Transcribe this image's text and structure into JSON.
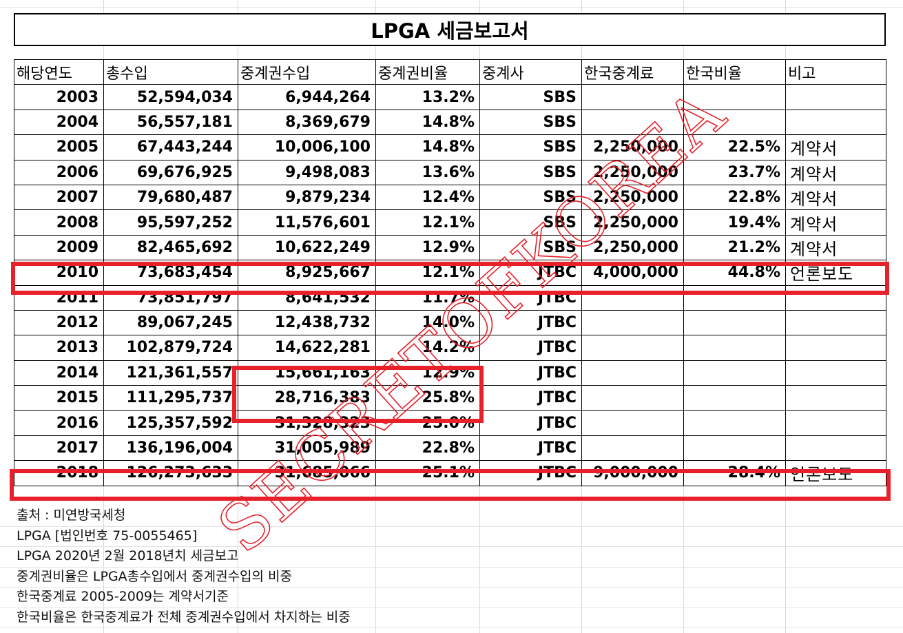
{
  "title": "LPGA 세금보고서",
  "columns": [
    "해당연도",
    "총수입",
    "중계권수입",
    "중계권비율",
    "중계사",
    "한국중계료",
    "한국비율",
    "비고"
  ],
  "rows": [
    {
      "year": "2003",
      "total": "52,594,034",
      "rights": "6,944,264",
      "ratio": "13.2%",
      "broadcaster": "SBS",
      "korea_fee": "",
      "korea_ratio": "",
      "note": ""
    },
    {
      "year": "2004",
      "total": "56,557,181",
      "rights": "8,369,679",
      "ratio": "14.8%",
      "broadcaster": "SBS",
      "korea_fee": "",
      "korea_ratio": "",
      "note": ""
    },
    {
      "year": "2005",
      "total": "67,443,244",
      "rights": "10,006,100",
      "ratio": "14.8%",
      "broadcaster": "SBS",
      "korea_fee": "2,250,000",
      "korea_ratio": "22.5%",
      "note": "계약서"
    },
    {
      "year": "2006",
      "total": "69,676,925",
      "rights": "9,498,083",
      "ratio": "13.6%",
      "broadcaster": "SBS",
      "korea_fee": "2,250,000",
      "korea_ratio": "23.7%",
      "note": "계약서"
    },
    {
      "year": "2007",
      "total": "79,680,487",
      "rights": "9,879,234",
      "ratio": "12.4%",
      "broadcaster": "SBS",
      "korea_fee": "2,250,000",
      "korea_ratio": "22.8%",
      "note": "계약서"
    },
    {
      "year": "2008",
      "total": "95,597,252",
      "rights": "11,576,601",
      "ratio": "12.1%",
      "broadcaster": "SBS",
      "korea_fee": "2,250,000",
      "korea_ratio": "19.4%",
      "note": "계약서"
    },
    {
      "year": "2009",
      "total": "82,465,692",
      "rights": "10,622,249",
      "ratio": "12.9%",
      "broadcaster": "SBS",
      "korea_fee": "2,250,000",
      "korea_ratio": "21.2%",
      "note": "계약서"
    },
    {
      "year": "2010",
      "total": "73,683,454",
      "rights": "8,925,667",
      "ratio": "12.1%",
      "broadcaster": "JTBC",
      "korea_fee": "4,000,000",
      "korea_ratio": "44.8%",
      "note": "언론보도"
    },
    {
      "year": "2011",
      "total": "73,851,797",
      "rights": "8,641,532",
      "ratio": "11.7%",
      "broadcaster": "JTBC",
      "korea_fee": "",
      "korea_ratio": "",
      "note": ""
    },
    {
      "year": "2012",
      "total": "89,067,245",
      "rights": "12,438,732",
      "ratio": "14.0%",
      "broadcaster": "JTBC",
      "korea_fee": "",
      "korea_ratio": "",
      "note": ""
    },
    {
      "year": "2013",
      "total": "102,879,724",
      "rights": "14,622,281",
      "ratio": "14.2%",
      "broadcaster": "JTBC",
      "korea_fee": "",
      "korea_ratio": "",
      "note": ""
    },
    {
      "year": "2014",
      "total": "121,361,557",
      "rights": "15,661,163",
      "ratio": "12.9%",
      "broadcaster": "JTBC",
      "korea_fee": "",
      "korea_ratio": "",
      "note": ""
    },
    {
      "year": "2015",
      "total": "111,295,737",
      "rights": "28,716,383",
      "ratio": "25.8%",
      "broadcaster": "JTBC",
      "korea_fee": "",
      "korea_ratio": "",
      "note": ""
    },
    {
      "year": "2016",
      "total": "125,357,592",
      "rights": "31,328,323",
      "ratio": "25.0%",
      "broadcaster": "JTBC",
      "korea_fee": "",
      "korea_ratio": "",
      "note": ""
    },
    {
      "year": "2017",
      "total": "136,196,004",
      "rights": "31,005,989",
      "ratio": "22.8%",
      "broadcaster": "JTBC",
      "korea_fee": "",
      "korea_ratio": "",
      "note": ""
    },
    {
      "year": "2018",
      "total": "126,273,633",
      "rights": "31,685,066",
      "ratio": "25.1%",
      "broadcaster": "JTBC",
      "korea_fee": "9,000,000",
      "korea_ratio": "28.4%",
      "note": "언론보도"
    }
  ],
  "footnotes": [
    "출처 : 미연방국세청",
    "LPGA [법인번호 75-0055465]",
    "LPGA 2020년 2월 2018년치 세금보고",
    "중계권비율은 LPGA총수입에서 중계권수입의 비중",
    "한국중계료 2005-2009는 계약서기준",
    "한국비율은 한국중계료가 전체 중계권수입에서 차지하는 비중"
  ],
  "watermark": "SECRETOFKOREA",
  "colors": {
    "highlight": "#e8202a",
    "watermark": "#e8202a"
  }
}
